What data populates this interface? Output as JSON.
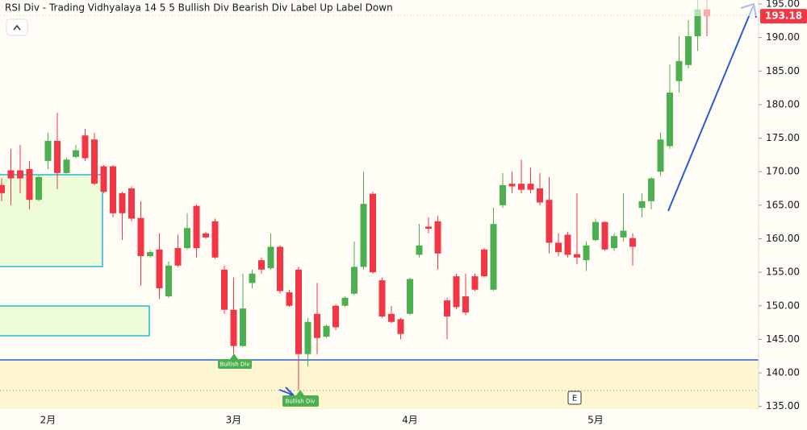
{
  "chart_data": {
    "type": "candlestick",
    "title": "RSI Div - Trading Vidhyalaya 14 5 5 Bullish Div Bearish Div Label Up Label Down",
    "categories": [
      null,
      null,
      null,
      null,
      null,
      "2月",
      null,
      null,
      null,
      null,
      null,
      null,
      null,
      null,
      null,
      null,
      null,
      null,
      null,
      null,
      null,
      null,
      null,
      null,
      null,
      "3月",
      null,
      null,
      null,
      null,
      null,
      null,
      null,
      null,
      null,
      null,
      null,
      null,
      null,
      null,
      null,
      null,
      null,
      null,
      "4月",
      null,
      null,
      null,
      null,
      null,
      null,
      null,
      null,
      null,
      null,
      null,
      null,
      null,
      null,
      null,
      null,
      null,
      null,
      null,
      "5月",
      null,
      null,
      null,
      null,
      null,
      null,
      null,
      null,
      null,
      null,
      null,
      null
    ],
    "open": [
      168.0,
      170.2,
      170.2,
      170.4,
      165.8,
      171.6,
      174.6,
      169.8,
      172.2,
      175.4,
      174.8,
      170.8,
      170.8,
      166.8,
      167.5,
      163.1,
      157.4,
      158.4,
      151.4,
      158.6,
      158.6,
      164.9,
      160.8,
      162.6,
      155.4,
      149.4,
      144.0,
      153.4,
      156.8,
      155.6,
      158.8,
      152.0,
      155.4,
      142.8,
      148.8,
      145.4,
      150.0,
      150.0,
      151.8,
      155.8,
      166.7,
      153.8,
      148.8,
      148.0,
      148.8,
      157.6,
      161.8,
      162.6,
      150.8,
      154.4,
      151.4,
      154.4,
      158.4,
      152.4,
      165.0,
      168.2,
      168.2,
      168.2,
      167.5,
      165.8,
      159.4,
      160.6,
      157.7,
      156.8,
      159.8,
      162.5,
      158.6,
      160.2,
      160.1,
      164.6,
      165.6,
      170.0,
      173.8,
      183.5,
      185.9,
      190.2,
      194.2
    ],
    "high": [
      169.0,
      173.4,
      174.0,
      171.6,
      169.4,
      175.8,
      178.8,
      172.1,
      174.0,
      176.4,
      175.8,
      171.0,
      171.0,
      167.0,
      167.8,
      165.6,
      158.3,
      160.8,
      156.6,
      160.6,
      163.8,
      165.1,
      161.0,
      163.0,
      156.0,
      154.2,
      154.8,
      155.4,
      157.2,
      160.8,
      159.0,
      152.4,
      155.8,
      148.2,
      153.4,
      147.2,
      150.2,
      151.4,
      159.6,
      170.0,
      167.0,
      154.2,
      150.0,
      148.2,
      154.2,
      162.2,
      163.2,
      163.4,
      151.2,
      154.8,
      154.8,
      154.8,
      158.6,
      164.6,
      169.8,
      170.0,
      171.8,
      170.6,
      169.8,
      169.2,
      160.8,
      161.0,
      166.8,
      159.6,
      163.0,
      162.6,
      160.8,
      166.8,
      160.8,
      166.8,
      169.2,
      175.8,
      186.0,
      190.2,
      192.6,
      195.6,
      195.6
    ],
    "low": [
      165.6,
      165.0,
      166.8,
      164.4,
      165.6,
      170.4,
      167.4,
      169.7,
      172.0,
      171.6,
      168.0,
      166.8,
      163.2,
      159.8,
      162.6,
      153.0,
      157.2,
      151.0,
      151.2,
      155.8,
      158.4,
      157.2,
      160.0,
      157.0,
      148.8,
      142.8,
      143.8,
      152.6,
      154.8,
      155.4,
      151.8,
      149.8,
      137.4,
      141.0,
      142.8,
      145.2,
      146.4,
      149.8,
      151.6,
      155.4,
      154.8,
      148.2,
      147.4,
      145.0,
      148.6,
      157.2,
      160.8,
      155.4,
      145.0,
      149.5,
      148.6,
      152.2,
      154.2,
      152.2,
      164.6,
      166.8,
      166.8,
      166.8,
      165.0,
      157.8,
      157.4,
      157.2,
      156.2,
      155.2,
      159.6,
      158.2,
      158.2,
      159.6,
      156.0,
      163.2,
      164.4,
      169.4,
      173.4,
      181.8,
      185.4,
      188.0,
      190.2
    ],
    "close": [
      166.8,
      169.0,
      169.0,
      165.8,
      169.2,
      174.6,
      169.8,
      171.8,
      173.2,
      172.0,
      168.2,
      167.0,
      163.8,
      163.8,
      163.0,
      157.4,
      158.0,
      152.6,
      156.0,
      156.0,
      161.6,
      158.6,
      160.2,
      157.2,
      149.4,
      144.0,
      149.6,
      154.8,
      155.4,
      158.8,
      152.2,
      150.0,
      142.8,
      147.6,
      145.2,
      147.0,
      146.8,
      151.2,
      155.8,
      165.2,
      155.0,
      148.4,
      147.6,
      145.8,
      154.0,
      159.0,
      161.5,
      157.8,
      148.4,
      149.8,
      149.0,
      152.4,
      154.4,
      162.2,
      168.0,
      167.8,
      167.3,
      167.3,
      165.4,
      159.4,
      158.0,
      157.6,
      157.2,
      159.0,
      162.5,
      158.4,
      160.4,
      161.2,
      158.8,
      165.6,
      169.0,
      174.8,
      181.8,
      186.5,
      190.2,
      194.2,
      193.18
    ],
    "up_color": "#4caf50",
    "down_color": "#f23645",
    "ylim": [
      134.6,
      195.6
    ],
    "yticks": [
      {
        "value": 135,
        "label": "135.00"
      },
      {
        "value": 140,
        "label": "140.00"
      },
      {
        "value": 145,
        "label": "145.00"
      },
      {
        "value": 150,
        "label": "150.00"
      },
      {
        "value": 155,
        "label": "155.00"
      },
      {
        "value": 160,
        "label": "160.00"
      },
      {
        "value": 165,
        "label": "165.00"
      },
      {
        "value": 170,
        "label": "170.00"
      },
      {
        "value": 175,
        "label": "175.00"
      },
      {
        "value": 180,
        "label": "180.00"
      },
      {
        "value": 185,
        "label": "185.00"
      },
      {
        "value": 190,
        "label": "190.00"
      },
      {
        "value": 195,
        "label": "195.00"
      }
    ],
    "annotations": [
      "Bullish Div",
      "Bullish Div"
    ],
    "event_marker": "E"
  }
}
